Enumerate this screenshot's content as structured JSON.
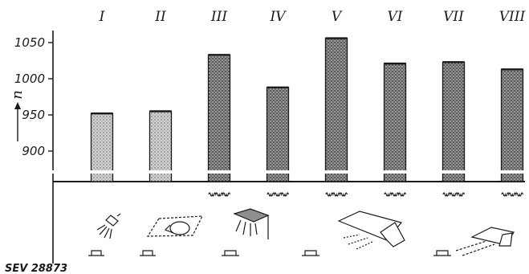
{
  "chart_data": {
    "type": "bar",
    "categories": [
      "I",
      "II",
      "III",
      "IV",
      "V",
      "VI",
      "VII",
      "VIII"
    ],
    "values": [
      952,
      955,
      1033,
      988,
      1056,
      1021,
      1023,
      1013
    ],
    "ylabel": "n",
    "yticks": [
      900,
      950,
      1000,
      1050
    ],
    "ylim": [
      862,
      1066
    ],
    "axis_break": true,
    "grid": false,
    "wave_markers": [
      false,
      false,
      true,
      true,
      true,
      true,
      true,
      true
    ],
    "reference": "SEV 28873"
  },
  "colors": {
    "ink": "#1a1a1a",
    "bar_fill": "#cfcfcf",
    "bar_fill_dark": "#8e8e8e"
  },
  "icons": [
    "lamp-icon",
    "lamp-in-box-icon",
    "canopy-lamp-icon",
    "trough-reflector-icon",
    "angled-reflector-icon"
  ]
}
